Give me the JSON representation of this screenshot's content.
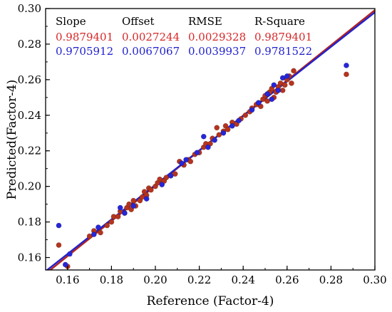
{
  "chart_data": {
    "type": "scatter",
    "title": "",
    "xlabel": "Reference (Factor-4)",
    "ylabel": "Predicted(Factor-4)",
    "xlim": [
      0.15,
      0.3
    ],
    "ylim": [
      0.153,
      0.3
    ],
    "x_ticks": [
      "0.16",
      "0.18",
      "0.20",
      "0.22",
      "0.24",
      "0.26",
      "0.28",
      "0.30"
    ],
    "y_ticks": [
      "0.16",
      "0.18",
      "0.20",
      "0.22",
      "0.24",
      "0.26",
      "0.28",
      "0.30"
    ],
    "grid": false,
    "stats_table": {
      "headers": [
        "Slope",
        "Offset",
        "RMSE",
        "R-Square"
      ],
      "rows": [
        {
          "color": "#d62728",
          "values": [
            "0.9879401",
            "0.0027244",
            "0.0029328",
            "0.9879401"
          ]
        },
        {
          "color": "#1f1fd0",
          "values": [
            "0.9705912",
            "0.0067067",
            "0.0039937",
            "0.9781522"
          ]
        }
      ]
    },
    "fit_lines": [
      {
        "color": "#b22222",
        "slope": 0.9879401,
        "offset": 0.0027244
      },
      {
        "color": "#2222cc",
        "slope": 0.9705912,
        "offset": 0.0067067
      }
    ],
    "series": [
      {
        "color": "#b5341e",
        "points": [
          [
            0.156,
            0.167
          ],
          [
            0.16,
            0.155
          ],
          [
            0.17,
            0.172
          ],
          [
            0.172,
            0.175
          ],
          [
            0.175,
            0.174
          ],
          [
            0.178,
            0.178
          ],
          [
            0.18,
            0.18
          ],
          [
            0.181,
            0.183
          ],
          [
            0.183,
            0.183
          ],
          [
            0.184,
            0.186
          ],
          [
            0.186,
            0.185
          ],
          [
            0.187,
            0.188
          ],
          [
            0.188,
            0.19
          ],
          [
            0.189,
            0.187
          ],
          [
            0.19,
            0.192
          ],
          [
            0.191,
            0.189
          ],
          [
            0.193,
            0.192
          ],
          [
            0.194,
            0.194
          ],
          [
            0.195,
            0.197
          ],
          [
            0.196,
            0.195
          ],
          [
            0.197,
            0.199
          ],
          [
            0.198,
            0.198
          ],
          [
            0.2,
            0.2
          ],
          [
            0.201,
            0.202
          ],
          [
            0.202,
            0.204
          ],
          [
            0.204,
            0.203
          ],
          [
            0.205,
            0.205
          ],
          [
            0.207,
            0.206
          ],
          [
            0.209,
            0.207
          ],
          [
            0.211,
            0.214
          ],
          [
            0.213,
            0.212
          ],
          [
            0.215,
            0.215
          ],
          [
            0.216,
            0.214
          ],
          [
            0.218,
            0.218
          ],
          [
            0.22,
            0.219
          ],
          [
            0.222,
            0.222
          ],
          [
            0.223,
            0.224
          ],
          [
            0.225,
            0.224
          ],
          [
            0.226,
            0.227
          ],
          [
            0.228,
            0.233
          ],
          [
            0.229,
            0.229
          ],
          [
            0.231,
            0.231
          ],
          [
            0.232,
            0.234
          ],
          [
            0.233,
            0.232
          ],
          [
            0.235,
            0.236
          ],
          [
            0.237,
            0.235
          ],
          [
            0.239,
            0.238
          ],
          [
            0.241,
            0.24
          ],
          [
            0.243,
            0.242
          ],
          [
            0.244,
            0.244
          ],
          [
            0.246,
            0.246
          ],
          [
            0.247,
            0.247
          ],
          [
            0.248,
            0.245
          ],
          [
            0.249,
            0.249
          ],
          [
            0.25,
            0.251
          ],
          [
            0.251,
            0.248
          ],
          [
            0.252,
            0.253
          ],
          [
            0.253,
            0.255
          ],
          [
            0.254,
            0.25
          ],
          [
            0.255,
            0.253
          ],
          [
            0.256,
            0.256
          ],
          [
            0.257,
            0.258
          ],
          [
            0.258,
            0.254
          ],
          [
            0.259,
            0.257
          ],
          [
            0.26,
            0.26
          ],
          [
            0.261,
            0.262
          ],
          [
            0.262,
            0.258
          ],
          [
            0.263,
            0.265
          ],
          [
            0.287,
            0.263
          ]
        ]
      },
      {
        "color": "#2626d9",
        "points": [
          [
            0.156,
            0.178
          ],
          [
            0.159,
            0.156
          ],
          [
            0.161,
            0.162
          ],
          [
            0.172,
            0.173
          ],
          [
            0.174,
            0.177
          ],
          [
            0.184,
            0.188
          ],
          [
            0.186,
            0.185
          ],
          [
            0.19,
            0.189
          ],
          [
            0.196,
            0.193
          ],
          [
            0.203,
            0.201
          ],
          [
            0.207,
            0.206
          ],
          [
            0.212,
            0.213
          ],
          [
            0.214,
            0.215
          ],
          [
            0.219,
            0.219
          ],
          [
            0.222,
            0.228
          ],
          [
            0.224,
            0.222
          ],
          [
            0.227,
            0.226
          ],
          [
            0.231,
            0.23
          ],
          [
            0.235,
            0.234
          ],
          [
            0.238,
            0.237
          ],
          [
            0.244,
            0.243
          ],
          [
            0.247,
            0.247
          ],
          [
            0.251,
            0.252
          ],
          [
            0.253,
            0.249
          ],
          [
            0.254,
            0.257
          ],
          [
            0.256,
            0.254
          ],
          [
            0.258,
            0.261
          ],
          [
            0.26,
            0.262
          ],
          [
            0.287,
            0.268
          ]
        ]
      }
    ]
  }
}
